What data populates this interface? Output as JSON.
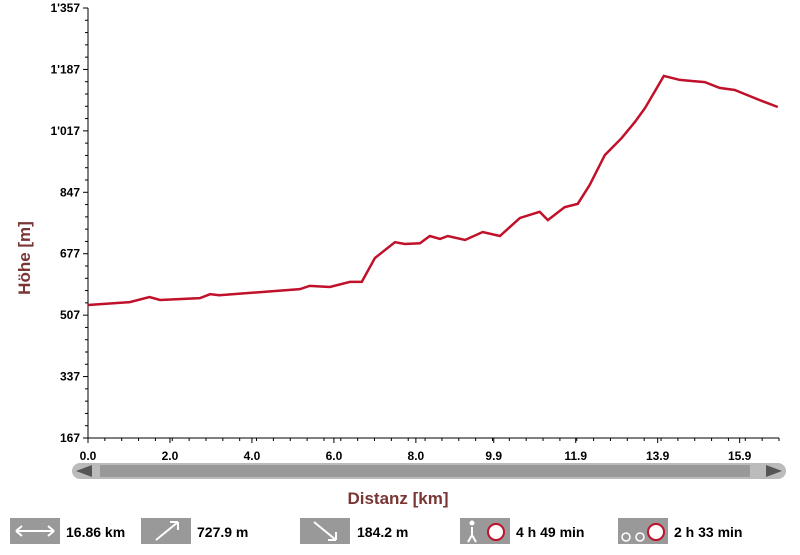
{
  "chart_data": {
    "type": "line",
    "y_label": "Höhe [m]",
    "x_label": "Distanz [km]",
    "x": [
      0,
      1.02,
      1.5,
      1.76,
      2.73,
      2.98,
      3.2,
      5.17,
      5.41,
      5.9,
      6.39,
      6.68,
      7.0,
      7.49,
      7.73,
      8.1,
      8.34,
      8.59,
      8.78,
      9.2,
      9.63,
      10.05,
      10.54,
      11.02,
      11.22,
      11.63,
      11.95,
      12.24,
      12.61,
      13.02,
      13.34,
      13.59,
      13.85,
      14.05,
      14.44,
      14.73,
      15.05,
      15.41,
      15.78,
      16.39,
      16.83
    ],
    "series": [
      {
        "color": "#c0102a",
        "values": [
          535,
          543,
          557,
          549,
          554,
          565,
          562,
          579,
          588,
          585,
          599,
          599,
          665,
          709,
          704,
          706,
          726,
          718,
          726,
          715,
          737,
          726,
          776,
          793,
          770,
          806,
          815,
          867,
          950,
          997,
          1041,
          1080,
          1130,
          1169,
          1158,
          1155,
          1152,
          1136,
          1130,
          1102,
          1083
        ]
      }
    ],
    "xlim": [
      0,
      16.86
    ],
    "ylim": [
      167,
      1357
    ],
    "xticks": [
      {
        "value": 0,
        "label": "0.0"
      },
      {
        "value": 2,
        "label": "2.0"
      },
      {
        "value": 4,
        "label": "4.0"
      },
      {
        "value": 6,
        "label": "6.0"
      },
      {
        "value": 8,
        "label": "8.0"
      },
      9.9,
      11.9,
      13.9,
      15.9
    ],
    "yticks": [
      167,
      337,
      507,
      677,
      847,
      {
        "value": 1017,
        "label": "1'017"
      },
      {
        "value": 1187,
        "label": "1'187"
      },
      {
        "value": 1357,
        "label": "1'357"
      }
    ],
    "stats": {
      "distance": "16.86 km",
      "ascent": "727.9 m",
      "descent": "184.2 m",
      "walk_time": "4 h 49 min",
      "bike_time": "2 h 33 min"
    }
  }
}
